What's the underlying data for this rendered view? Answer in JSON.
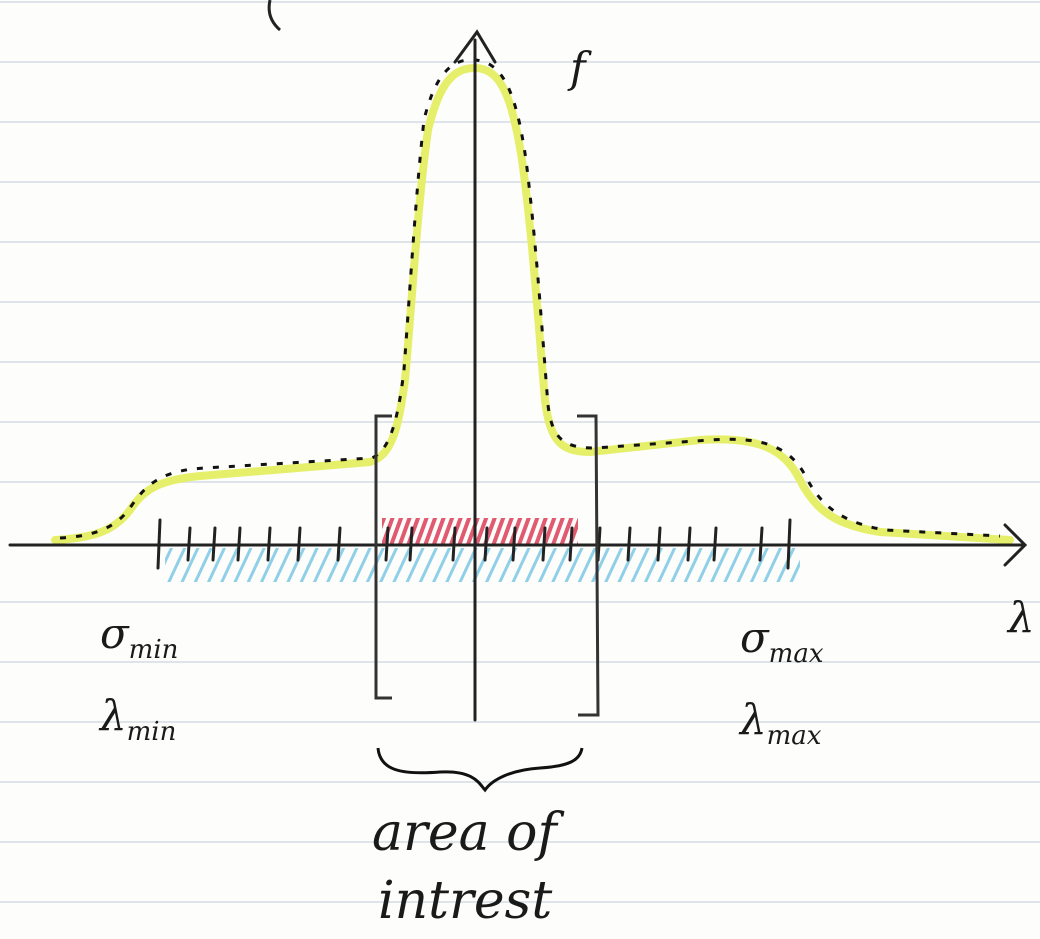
{
  "axes": {
    "y_label": "f",
    "x_label": "λ"
  },
  "labels": {
    "sigma_min": {
      "base": "σ",
      "sub": "min"
    },
    "lambda_min": {
      "base": "λ",
      "sub": "min"
    },
    "sigma_max": {
      "base": "σ",
      "sub": "max"
    },
    "lambda_max": {
      "base": "λ",
      "sub": "max"
    }
  },
  "annotation": {
    "lines": [
      "area of",
      "intrest"
    ]
  }
}
